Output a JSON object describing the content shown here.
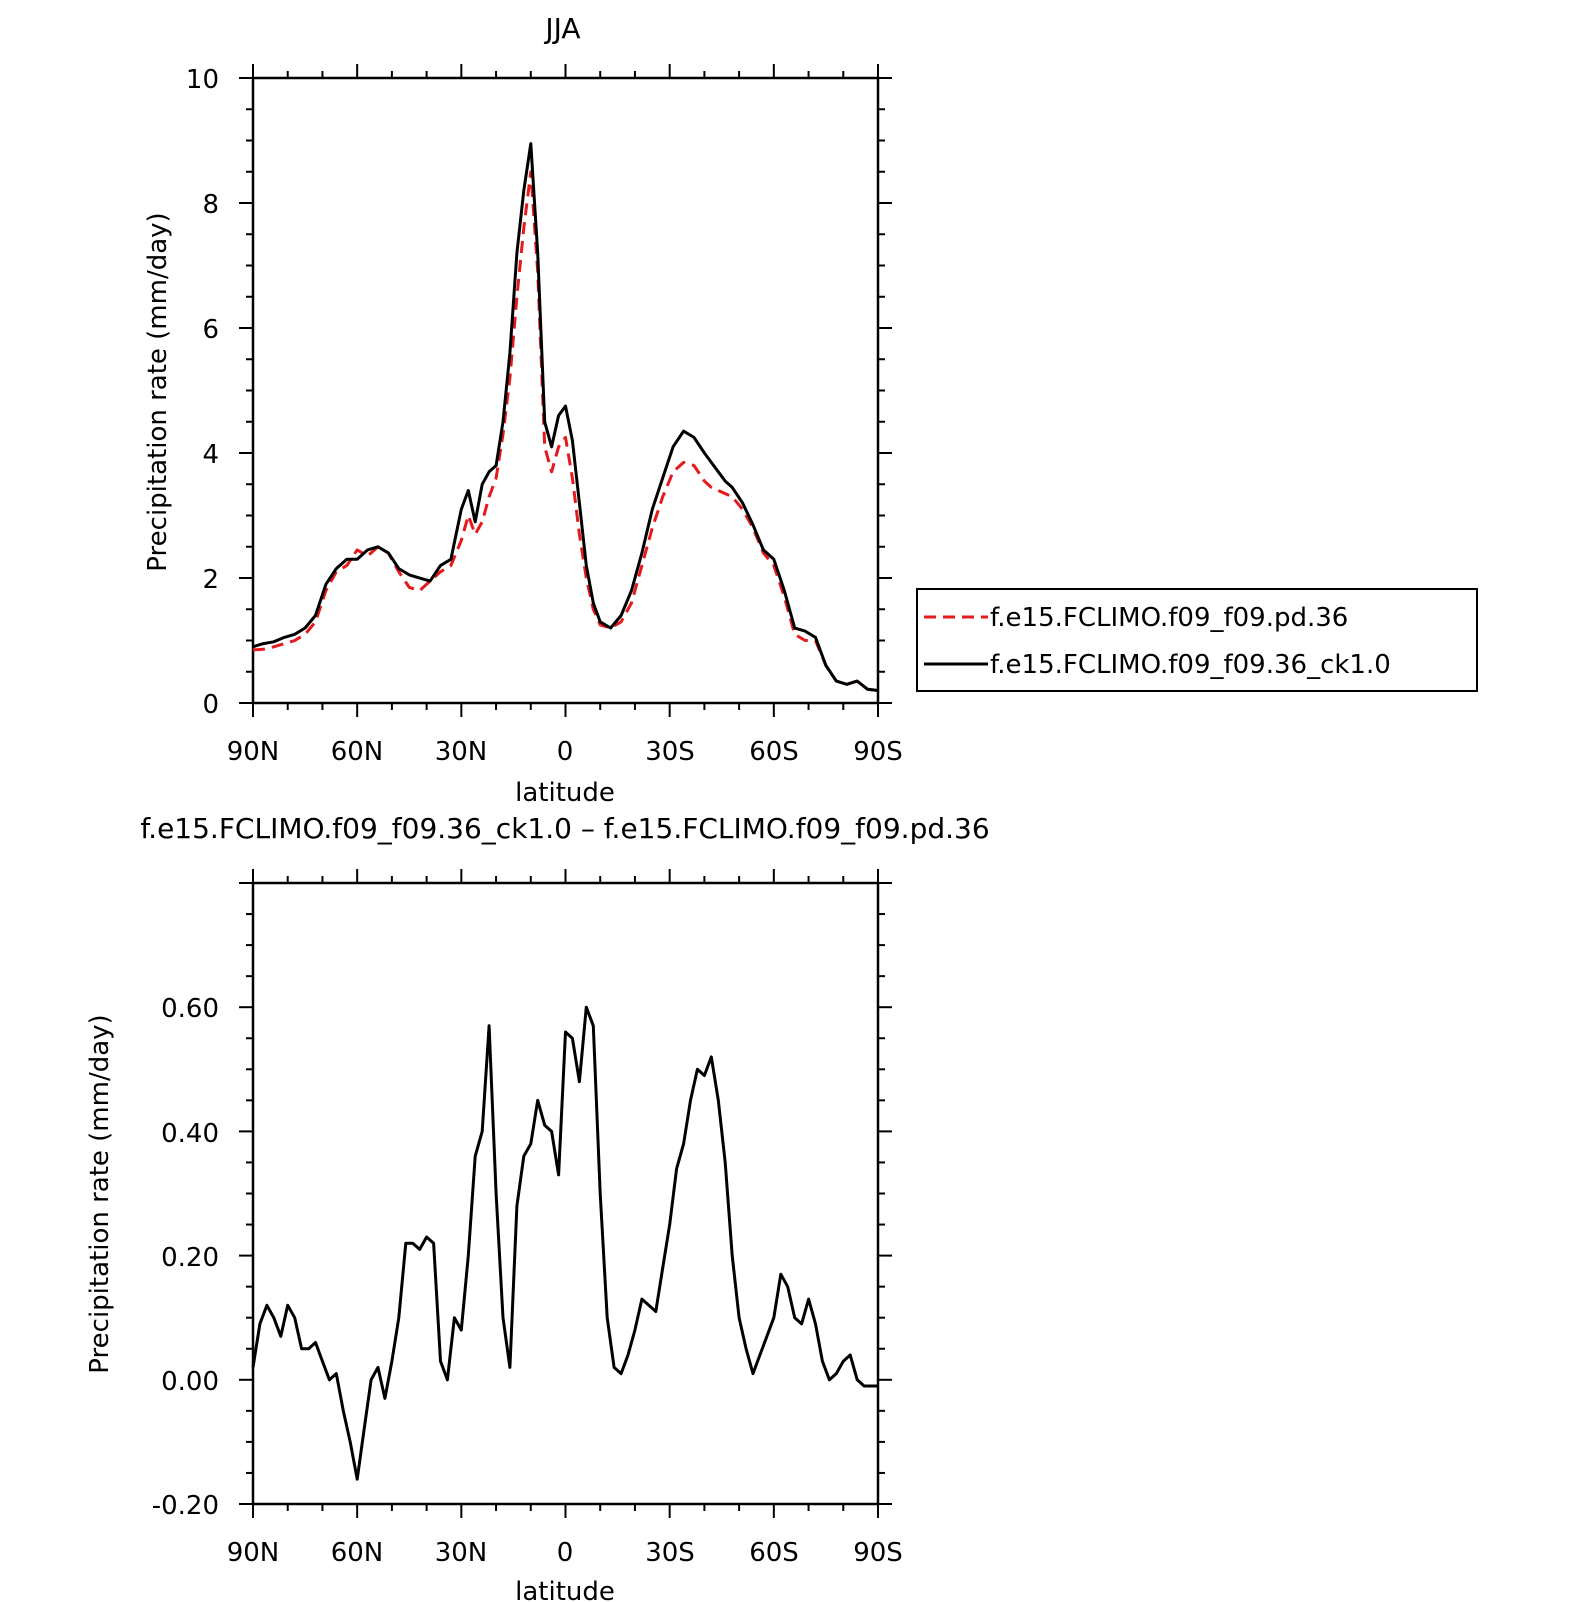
{
  "charts": {
    "top": {
      "title": "JJA",
      "xlabel": "latitude",
      "ylabel": "Precipitation rate (mm/day)",
      "x_tick_labels": [
        "90N",
        "60N",
        "30N",
        "0",
        "30S",
        "60S",
        "90S"
      ],
      "y_tick_labels": [
        "0",
        "2",
        "4",
        "6",
        "8",
        "10"
      ],
      "legend": {
        "entry_red": "f.e15.FCLIMO.f09_f09.pd.36",
        "entry_black": "f.e15.FCLIMO.f09_f09.36_ck1.0"
      }
    },
    "bottom": {
      "title": "f.e15.FCLIMO.f09_f09.36_ck1.0 – f.e15.FCLIMO.f09_f09.pd.36",
      "xlabel": "latitude",
      "ylabel": "Precipitation rate (mm/day)",
      "x_tick_labels": [
        "90N",
        "60N",
        "30N",
        "0",
        "30S",
        "60S",
        "90S"
      ],
      "y_tick_labels": [
        "-0.20",
        "0.00",
        "0.20",
        "0.40",
        "0.60"
      ]
    }
  },
  "colors": {
    "series_red": "#e41a1c",
    "series_black": "#000000"
  },
  "chart_data": [
    {
      "type": "line",
      "title": "JJA",
      "xlabel": "latitude",
      "ylabel": "Precipitation rate (mm/day)",
      "x_axis": "latitude, 90 (90N) to -90 (90S)",
      "xlim": [
        90,
        -90
      ],
      "ylim": [
        0,
        10
      ],
      "legend_position": "right",
      "series": [
        {
          "name": "f.e15.FCLIMO.f09_f09.pd.36",
          "color": "#e41a1c",
          "style": "dashed",
          "x": [
            90,
            87,
            84,
            81,
            78,
            75,
            72,
            69,
            66,
            63,
            60,
            57,
            54,
            51,
            48,
            45,
            42,
            39,
            36,
            33,
            30,
            28,
            26,
            24,
            22,
            20,
            18,
            16,
            14,
            12,
            10,
            8,
            6,
            4,
            2,
            0,
            -2,
            -4,
            -6,
            -8,
            -10,
            -13,
            -16,
            -19,
            -22,
            -25,
            -28,
            -31,
            -34,
            -37,
            -40,
            -42,
            -44,
            -46,
            -48,
            -51,
            -54,
            -57,
            -60,
            -63,
            -66,
            -69,
            -72,
            -75,
            -78,
            -81,
            -84,
            -87,
            -90
          ],
          "y": [
            0.85,
            0.86,
            0.9,
            0.95,
            1.0,
            1.1,
            1.3,
            1.8,
            2.1,
            2.2,
            2.45,
            2.35,
            2.5,
            2.4,
            2.1,
            1.85,
            1.8,
            1.95,
            2.1,
            2.2,
            2.6,
            3.0,
            2.7,
            2.9,
            3.3,
            3.6,
            4.3,
            5.2,
            6.5,
            7.6,
            8.5,
            6.9,
            4.1,
            3.7,
            4.1,
            4.25,
            3.6,
            2.7,
            2.0,
            1.5,
            1.25,
            1.2,
            1.3,
            1.6,
            2.2,
            2.8,
            3.3,
            3.7,
            3.85,
            3.8,
            3.55,
            3.45,
            3.4,
            3.35,
            3.3,
            3.1,
            2.8,
            2.4,
            2.2,
            1.7,
            1.1,
            1.0,
            1.0,
            0.6,
            0.35,
            0.3,
            0.35,
            0.22,
            0.2
          ]
        },
        {
          "name": "f.e15.FCLIMO.f09_f09.36_ck1.0",
          "color": "#000000",
          "style": "solid",
          "x": [
            90,
            87,
            84,
            81,
            78,
            75,
            72,
            69,
            66,
            63,
            60,
            57,
            54,
            51,
            48,
            45,
            42,
            39,
            36,
            33,
            30,
            28,
            26,
            24,
            22,
            20,
            18,
            16,
            14,
            12,
            10,
            8,
            6,
            4,
            2,
            0,
            -2,
            -4,
            -6,
            -8,
            -10,
            -13,
            -16,
            -19,
            -22,
            -25,
            -28,
            -31,
            -34,
            -37,
            -40,
            -42,
            -44,
            -46,
            -48,
            -51,
            -54,
            -57,
            -60,
            -63,
            -66,
            -69,
            -72,
            -75,
            -78,
            -81,
            -84,
            -87,
            -90
          ],
          "y": [
            0.9,
            0.95,
            0.98,
            1.05,
            1.1,
            1.2,
            1.4,
            1.9,
            2.15,
            2.3,
            2.3,
            2.45,
            2.5,
            2.4,
            2.15,
            2.05,
            2.0,
            1.95,
            2.2,
            2.3,
            3.1,
            3.4,
            2.9,
            3.5,
            3.7,
            3.8,
            4.5,
            5.6,
            7.2,
            8.2,
            8.95,
            7.2,
            4.5,
            4.1,
            4.6,
            4.75,
            4.2,
            3.2,
            2.2,
            1.6,
            1.3,
            1.2,
            1.4,
            1.8,
            2.4,
            3.1,
            3.6,
            4.1,
            4.35,
            4.25,
            4.0,
            3.85,
            3.7,
            3.55,
            3.45,
            3.2,
            2.85,
            2.45,
            2.3,
            1.8,
            1.2,
            1.15,
            1.05,
            0.6,
            0.35,
            0.3,
            0.35,
            0.22,
            0.2
          ]
        }
      ]
    },
    {
      "type": "line",
      "title": "f.e15.FCLIMO.f09_f09.36_ck1.0 – f.e15.FCLIMO.f09_f09.pd.36",
      "xlabel": "latitude",
      "ylabel": "Precipitation rate (mm/day)",
      "x_axis": "latitude, 90 (90N) to -90 (90S)",
      "xlim": [
        90,
        -90
      ],
      "ylim": [
        -0.2,
        0.8
      ],
      "series": [
        {
          "color": "#000000",
          "style": "solid",
          "x": [
            90,
            88,
            86,
            84,
            82,
            80,
            78,
            76,
            74,
            72,
            70,
            68,
            66,
            64,
            62,
            60,
            58,
            56,
            54,
            52,
            50,
            48,
            46,
            44,
            42,
            40,
            38,
            36,
            34,
            32,
            30,
            28,
            26,
            24,
            22,
            20,
            18,
            16,
            14,
            12,
            10,
            8,
            6,
            4,
            2,
            0,
            -2,
            -4,
            -6,
            -8,
            -10,
            -12,
            -14,
            -16,
            -18,
            -20,
            -22,
            -24,
            -26,
            -28,
            -30,
            -32,
            -34,
            -36,
            -38,
            -40,
            -42,
            -44,
            -46,
            -48,
            -50,
            -52,
            -54,
            -56,
            -58,
            -60,
            -62,
            -64,
            -66,
            -68,
            -70,
            -72,
            -74,
            -76,
            -78,
            -80,
            -82,
            -84,
            -86,
            -88,
            -90
          ],
          "y": [
            0.02,
            0.09,
            0.12,
            0.1,
            0.07,
            0.12,
            0.1,
            0.05,
            0.05,
            0.06,
            0.03,
            0.0,
            0.01,
            -0.05,
            -0.1,
            -0.16,
            -0.08,
            0.0,
            0.02,
            -0.03,
            0.03,
            0.1,
            0.22,
            0.22,
            0.21,
            0.23,
            0.22,
            0.03,
            0.0,
            0.1,
            0.08,
            0.2,
            0.36,
            0.4,
            0.57,
            0.3,
            0.1,
            0.02,
            0.28,
            0.36,
            0.38,
            0.45,
            0.41,
            0.4,
            0.33,
            0.56,
            0.55,
            0.48,
            0.6,
            0.57,
            0.3,
            0.1,
            0.02,
            0.01,
            0.04,
            0.08,
            0.13,
            0.12,
            0.11,
            0.18,
            0.25,
            0.34,
            0.38,
            0.45,
            0.5,
            0.49,
            0.52,
            0.45,
            0.35,
            0.2,
            0.1,
            0.05,
            0.01,
            0.04,
            0.07,
            0.1,
            0.17,
            0.15,
            0.1,
            0.09,
            0.13,
            0.09,
            0.03,
            0.0,
            0.01,
            0.03,
            0.04,
            0.0,
            -0.01,
            -0.01,
            -0.01
          ]
        }
      ]
    }
  ]
}
